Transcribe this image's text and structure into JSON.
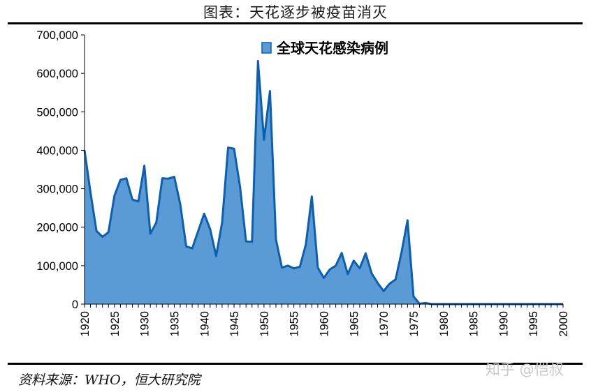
{
  "header": {
    "title": "图表：天花逐步被疫苗消灭"
  },
  "footer": {
    "source": "资料来源：WHO，恒大研究院",
    "watermark": "知乎 @恺叔"
  },
  "chart_data": {
    "type": "area",
    "title": "图表：天花逐步被疫苗消灭",
    "xlabel": "",
    "ylabel": "",
    "series": [
      {
        "name": "全球天花感染病例",
        "color": "#5b9bd5",
        "line_color": "#0a5fb0"
      }
    ],
    "x": [
      1920,
      1921,
      1922,
      1923,
      1924,
      1925,
      1926,
      1927,
      1928,
      1929,
      1930,
      1931,
      1932,
      1933,
      1934,
      1935,
      1936,
      1937,
      1938,
      1939,
      1940,
      1941,
      1942,
      1943,
      1944,
      1945,
      1946,
      1947,
      1948,
      1949,
      1950,
      1951,
      1952,
      1953,
      1954,
      1955,
      1956,
      1957,
      1958,
      1959,
      1960,
      1961,
      1962,
      1963,
      1964,
      1965,
      1966,
      1967,
      1968,
      1969,
      1970,
      1971,
      1972,
      1973,
      1974,
      1975,
      1976,
      1977,
      1978,
      1979,
      1980,
      1981,
      1982,
      1983,
      1984,
      1985,
      1986,
      1987,
      1988,
      1989,
      1990,
      1991,
      1992,
      1993,
      1994,
      1995,
      1996,
      1997,
      1998,
      1999,
      2000
    ],
    "values": [
      400000,
      290000,
      190000,
      175000,
      187000,
      282000,
      323000,
      327000,
      272000,
      267000,
      360000,
      183000,
      212000,
      327000,
      326000,
      331000,
      260000,
      150000,
      145000,
      190000,
      235000,
      195000,
      125000,
      212000,
      407000,
      404000,
      305000,
      163000,
      162000,
      632000,
      427000,
      554000,
      168000,
      95000,
      100000,
      93000,
      97000,
      155000,
      280000,
      95000,
      68000,
      90000,
      100000,
      133000,
      78000,
      113000,
      93000,
      132000,
      80000,
      55000,
      34000,
      53000,
      64000,
      135000,
      218000,
      20000,
      1000,
      3000,
      0,
      0,
      0,
      0,
      0,
      0,
      0,
      0,
      0,
      0,
      0,
      0,
      0,
      0,
      0,
      0,
      0,
      0,
      0,
      0,
      0,
      0,
      0
    ],
    "x_ticks": [
      "1920",
      "1925",
      "1930",
      "1935",
      "1940",
      "1945",
      "1950",
      "1955",
      "1960",
      "1965",
      "1970",
      "1975",
      "1980",
      "1985",
      "1990",
      "1995",
      "2000"
    ],
    "y_ticks": [
      "0",
      "100,000",
      "200,000",
      "300,000",
      "400,000",
      "500,000",
      "600,000",
      "700,000"
    ],
    "xlim": [
      1920,
      2000
    ],
    "ylim": [
      0,
      700000
    ],
    "grid": false,
    "legend_position": "top-center"
  }
}
